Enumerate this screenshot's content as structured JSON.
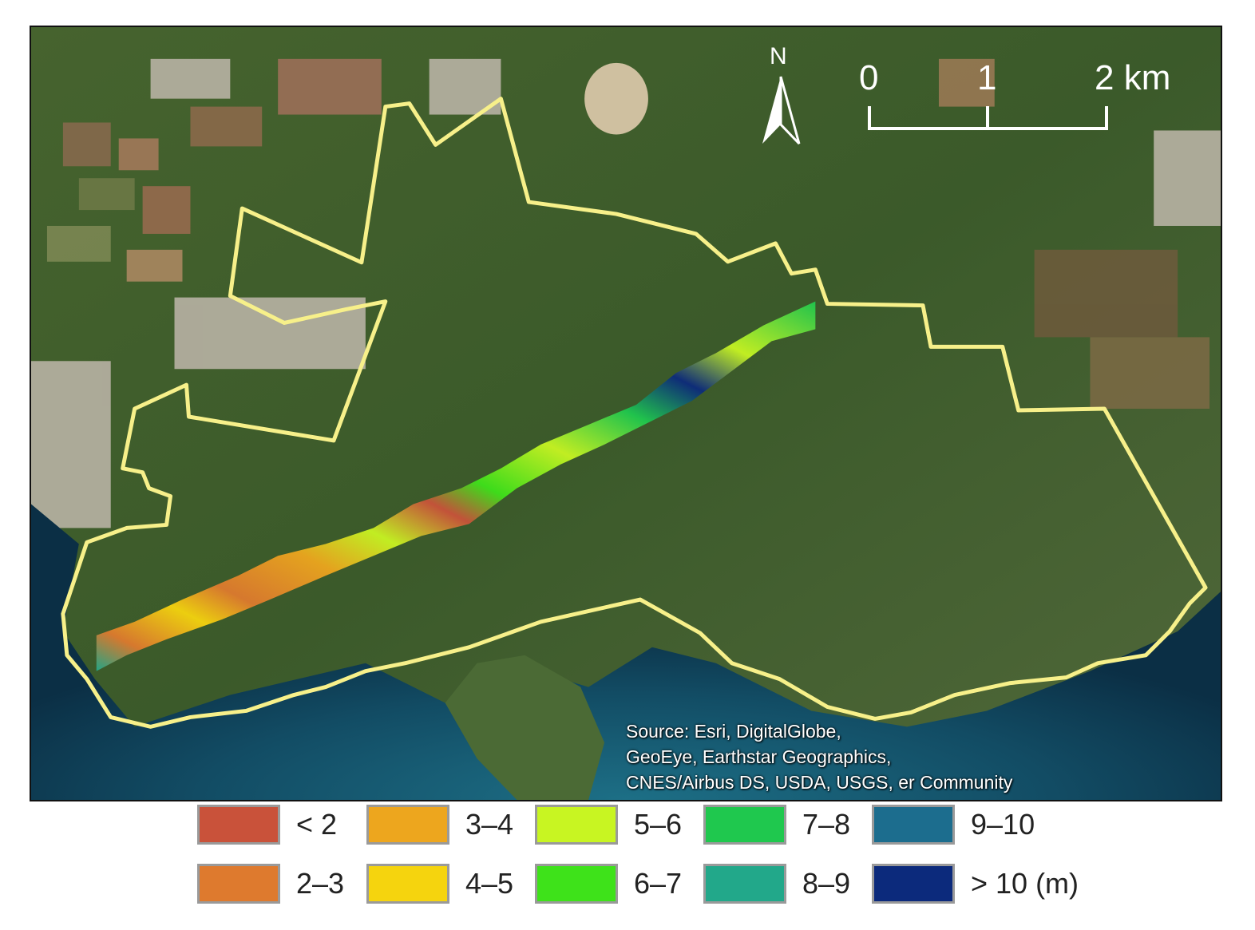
{
  "map": {
    "boundary_color": "#f7f08a",
    "background_tone": "#3f5a2c"
  },
  "north_arrow": {
    "letter": "N"
  },
  "scale_bar": {
    "labels": [
      "0",
      "1",
      "2 km"
    ]
  },
  "attribution": {
    "lines": [
      "Source: Esri, DigitalGlobe,",
      "GeoEye, Earthstar Geographics,",
      "CNES/Airbus DS, USDA, USGS, er Community"
    ]
  },
  "legend": {
    "items": [
      {
        "label": "< 2",
        "color": "#c9523a"
      },
      {
        "label": "2–3",
        "color": "#de7a2e"
      },
      {
        "label": "3–4",
        "color": "#eda61e"
      },
      {
        "label": "4–5",
        "color": "#f5d40e"
      },
      {
        "label": "5–6",
        "color": "#c8f522"
      },
      {
        "label": "6–7",
        "color": "#3ee21a"
      },
      {
        "label": "7–8",
        "color": "#1fc84e"
      },
      {
        "label": "8–9",
        "color": "#22a88a"
      },
      {
        "label": "9–10",
        "color": "#1c6d8e"
      },
      {
        "label": "> 10 (m)",
        "color": "#0c2a7c"
      }
    ]
  }
}
